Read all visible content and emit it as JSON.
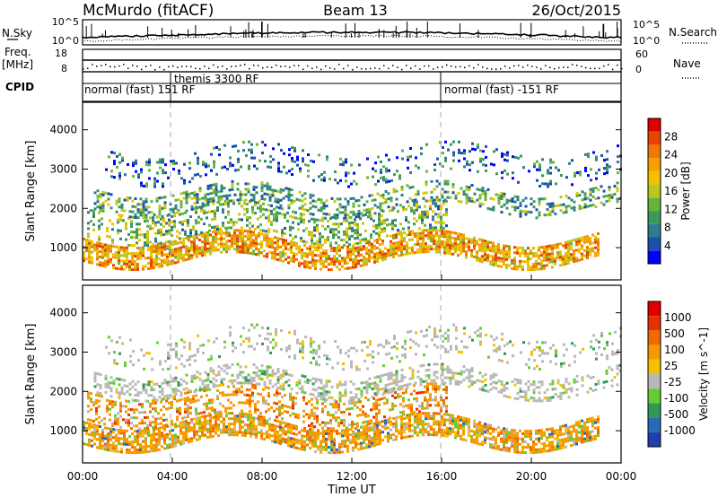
{
  "header": {
    "station": "McMurdo (fitACF)",
    "beam": "Beam 13",
    "date": "26/Oct/2015"
  },
  "top_panels": {
    "nsky_label": "N.Sky",
    "nsearch_label": "N.Search",
    "sky_ticks_left": [
      "10^5",
      "10^0"
    ],
    "sky_ticks_right": [
      "10^5",
      "10^0"
    ],
    "freq_label": "Freq.",
    "freq_unit": "[MHz]",
    "freq_ticks": [
      "18",
      "8"
    ],
    "nave_label": "Nave",
    "nave_ticks": [
      "60",
      "0"
    ],
    "cpid_label": "CPID",
    "cpid_segments": [
      {
        "text": "normal (fast) 151 RF"
      },
      {
        "text": "themis 3300 RF"
      },
      {
        "text": "normal (fast) -151 RF"
      }
    ]
  },
  "chart_data": [
    {
      "type": "heatmap",
      "title": "Power",
      "ylabel": "Slant Range [km]",
      "xlabel": "Time UT",
      "x_ticks": [
        "00:00",
        "04:00",
        "08:00",
        "12:00",
        "16:00",
        "20:00",
        "00:00"
      ],
      "x_range_hours": [
        0,
        24
      ],
      "y_ticks": [
        1000,
        2000,
        3000,
        4000
      ],
      "ylim": [
        180,
        4700
      ],
      "colorbar_label": "Power [dB]",
      "colorbar_ticks": [
        "4",
        "8",
        "12",
        "16",
        "20",
        "24",
        "28"
      ],
      "colorbar_colors": [
        "#0000ff",
        "#1a4fb0",
        "#2e7d8c",
        "#3a9a5a",
        "#64b53a",
        "#b9c81e",
        "#f2c200",
        "#f5a000",
        "#f07800",
        "#e84400",
        "#e00000"
      ],
      "bands": [
        {
          "name": "core",
          "start_h": 0.0,
          "end_h": 23.0,
          "range_km": [
            700,
            1250
          ],
          "level": 20
        },
        {
          "name": "mid",
          "start_h": 0.2,
          "end_h": 16.2,
          "range_km": [
            1300,
            2000
          ],
          "level": 12
        },
        {
          "name": "upper",
          "start_h": 0.5,
          "end_h": 24.0,
          "range_km": [
            2000,
            2500
          ],
          "level": 10
        },
        {
          "name": "far",
          "start_h": 1.0,
          "end_h": 24.0,
          "range_km": [
            2800,
            3500
          ],
          "level": 6
        }
      ]
    },
    {
      "type": "heatmap",
      "title": "Velocity",
      "ylabel": "Slant Range [km]",
      "xlabel": "Time UT",
      "x_ticks": [
        "00:00",
        "04:00",
        "08:00",
        "12:00",
        "16:00",
        "20:00",
        "00:00"
      ],
      "x_range_hours": [
        0,
        24
      ],
      "y_ticks": [
        1000,
        2000,
        3000,
        4000
      ],
      "ylim": [
        180,
        4700
      ],
      "colorbar_label": "Velocity [m s^-1]",
      "colorbar_ticks": [
        "1000",
        "500",
        "100",
        "25",
        "-25",
        "-100",
        "-500",
        "-1000"
      ],
      "colorbar_colors": [
        "#1f3fb0",
        "#2a68b8",
        "#2f9a55",
        "#66cc33",
        "#b8b8b8",
        "#f5c000",
        "#f59a00",
        "#f06a00",
        "#e83000",
        "#e00000"
      ],
      "bands": [
        {
          "name": "core",
          "start_h": 0.0,
          "end_h": 23.0,
          "range_km": [
            700,
            1250
          ],
          "velocity": -300
        },
        {
          "name": "mid",
          "start_h": 0.2,
          "end_h": 16.2,
          "range_km": [
            1300,
            2000
          ],
          "velocity": -200
        },
        {
          "name": "upper",
          "start_h": 0.5,
          "end_h": 24.0,
          "range_km": [
            2000,
            2500
          ],
          "velocity": 0
        },
        {
          "name": "far",
          "start_h": 1.0,
          "end_h": 24.0,
          "range_km": [
            2800,
            3500
          ],
          "velocity": 0
        }
      ]
    }
  ]
}
